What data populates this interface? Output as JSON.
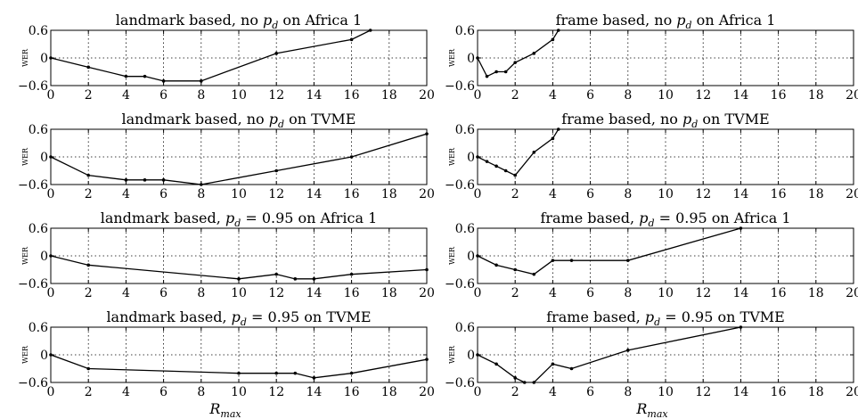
{
  "chart_data": [
    {
      "type": "line",
      "title": "landmark based, no p_d on Africa 1",
      "title_parts": {
        "before": "landmark based, no ",
        "symbol": "p",
        "sub": "d",
        "after": " on Africa 1"
      },
      "ylabel": "WER",
      "xlabel": "",
      "xlim": [
        0,
        20
      ],
      "ylim": [
        -0.6,
        0.6
      ],
      "xticks": [
        "0",
        "2",
        "4",
        "6",
        "8",
        "10",
        "12",
        "14",
        "16",
        "18",
        "20"
      ],
      "yticks": [
        "0.6",
        "0",
        "−0.6"
      ],
      "grid": true,
      "series": [
        {
          "x": [
            0,
            2,
            4,
            5,
            6,
            8,
            12,
            16,
            17
          ],
          "y": [
            0.0,
            -0.2,
            -0.4,
            -0.4,
            -0.5,
            -0.5,
            0.1,
            0.4,
            0.6
          ]
        }
      ]
    },
    {
      "type": "line",
      "title": "frame based, no p_d on Africa 1",
      "title_parts": {
        "before": "frame based, no ",
        "symbol": "p",
        "sub": "d",
        "after": " on Africa 1"
      },
      "ylabel": "WER",
      "xlabel": "",
      "xlim": [
        0,
        20
      ],
      "ylim": [
        -0.6,
        0.6
      ],
      "xticks": [
        "0",
        "2",
        "4",
        "6",
        "8",
        "10",
        "12",
        "14",
        "16",
        "18",
        "20"
      ],
      "yticks": [
        "0.6",
        "0",
        "−0.6"
      ],
      "grid": true,
      "series": [
        {
          "x": [
            0,
            0.5,
            1,
            1.5,
            2,
            3,
            4,
            4.3
          ],
          "y": [
            0.0,
            -0.4,
            -0.3,
            -0.3,
            -0.1,
            0.1,
            0.4,
            0.6
          ]
        }
      ]
    },
    {
      "type": "line",
      "title": "landmark based, no p_d on TVME",
      "title_parts": {
        "before": "landmark based, no ",
        "symbol": "p",
        "sub": "d",
        "after": " on TVME"
      },
      "ylabel": "WER",
      "xlabel": "",
      "xlim": [
        0,
        20
      ],
      "ylim": [
        -0.6,
        0.6
      ],
      "xticks": [
        "0",
        "2",
        "4",
        "6",
        "8",
        "10",
        "12",
        "14",
        "16",
        "18",
        "20"
      ],
      "yticks": [
        "0.6",
        "0",
        "−0.6"
      ],
      "grid": true,
      "series": [
        {
          "x": [
            0,
            2,
            4,
            5,
            6,
            8,
            12,
            16,
            20
          ],
          "y": [
            0.0,
            -0.4,
            -0.5,
            -0.5,
            -0.5,
            -0.6,
            -0.3,
            0.0,
            0.5
          ]
        }
      ]
    },
    {
      "type": "line",
      "title": "frame based, no p_d on TVME",
      "title_parts": {
        "before": "frame based, no ",
        "symbol": "p",
        "sub": "d",
        "after": " on TVME"
      },
      "ylabel": "WER",
      "xlabel": "",
      "xlim": [
        0,
        20
      ],
      "ylim": [
        -0.6,
        0.6
      ],
      "xticks": [
        "0",
        "2",
        "4",
        "6",
        "8",
        "10",
        "12",
        "14",
        "16",
        "18",
        "20"
      ],
      "yticks": [
        "0.6",
        "0",
        "−0.6"
      ],
      "grid": true,
      "series": [
        {
          "x": [
            0,
            0.5,
            1,
            1.5,
            2,
            3,
            4,
            4.3
          ],
          "y": [
            0.0,
            -0.1,
            -0.2,
            -0.3,
            -0.4,
            0.1,
            0.4,
            0.6
          ]
        }
      ]
    },
    {
      "type": "line",
      "title": "landmark based, p_d = 0.95 on Africa 1",
      "title_parts": {
        "before": "landmark based, ",
        "symbol": "p",
        "sub": "d",
        "after": " = 0.95 on Africa 1"
      },
      "ylabel": "WER",
      "xlabel": "",
      "xlim": [
        0,
        20
      ],
      "ylim": [
        -0.6,
        0.6
      ],
      "xticks": [
        "0",
        "2",
        "4",
        "6",
        "8",
        "10",
        "12",
        "14",
        "16",
        "18",
        "20"
      ],
      "yticks": [
        "0.6",
        "0",
        "−0.6"
      ],
      "grid": true,
      "series": [
        {
          "x": [
            0,
            2,
            10,
            12,
            13,
            14,
            16,
            20
          ],
          "y": [
            0.0,
            -0.2,
            -0.5,
            -0.4,
            -0.5,
            -0.5,
            -0.4,
            -0.3
          ]
        }
      ]
    },
    {
      "type": "line",
      "title": "frame based, p_d = 0.95 on Africa 1",
      "title_parts": {
        "before": "frame based, ",
        "symbol": "p",
        "sub": "d",
        "after": " = 0.95 on Africa 1"
      },
      "ylabel": "WER",
      "xlabel": "",
      "xlim": [
        0,
        20
      ],
      "ylim": [
        -0.6,
        0.6
      ],
      "xticks": [
        "0",
        "2",
        "4",
        "6",
        "8",
        "10",
        "12",
        "14",
        "16",
        "18",
        "20"
      ],
      "yticks": [
        "0.6",
        "0",
        "−0.6"
      ],
      "grid": true,
      "series": [
        {
          "x": [
            0,
            1,
            2,
            3,
            4,
            5,
            8,
            14
          ],
          "y": [
            0.0,
            -0.2,
            -0.3,
            -0.4,
            -0.1,
            -0.1,
            -0.1,
            0.6
          ]
        }
      ]
    },
    {
      "type": "line",
      "title": "landmark based, p_d = 0.95 on TVME",
      "title_parts": {
        "before": "landmark based, ",
        "symbol": "p",
        "sub": "d",
        "after": " = 0.95 on TVME"
      },
      "ylabel": "WER",
      "xlabel": "R_max",
      "xlabel_parts": {
        "symbol": "R",
        "sub": "max"
      },
      "xlim": [
        0,
        20
      ],
      "ylim": [
        -0.6,
        0.6
      ],
      "xticks": [
        "0",
        "2",
        "4",
        "6",
        "8",
        "10",
        "12",
        "14",
        "16",
        "18",
        "20"
      ],
      "yticks": [
        "0.6",
        "0",
        "−0.6"
      ],
      "grid": true,
      "series": [
        {
          "x": [
            0,
            2,
            10,
            12,
            13,
            14,
            16,
            20
          ],
          "y": [
            0.0,
            -0.3,
            -0.4,
            -0.4,
            -0.4,
            -0.5,
            -0.4,
            -0.1
          ]
        }
      ]
    },
    {
      "type": "line",
      "title": "frame based, p_d = 0.95 on TVME",
      "title_parts": {
        "before": "frame based, ",
        "symbol": "p",
        "sub": "d",
        "after": " = 0.95 on TVME"
      },
      "ylabel": "WER",
      "xlabel": "R_max",
      "xlabel_parts": {
        "symbol": "R",
        "sub": "max"
      },
      "xlim": [
        0,
        20
      ],
      "ylim": [
        -0.6,
        0.6
      ],
      "xticks": [
        "0",
        "2",
        "4",
        "6",
        "8",
        "10",
        "12",
        "14",
        "16",
        "18",
        "20"
      ],
      "yticks": [
        "0.6",
        "0",
        "−0.6"
      ],
      "grid": true,
      "series": [
        {
          "x": [
            0,
            1,
            2,
            2.5,
            3,
            4,
            5,
            8,
            14
          ],
          "y": [
            0.0,
            -0.2,
            -0.5,
            -0.6,
            -0.6,
            -0.2,
            -0.3,
            0.1,
            0.6
          ]
        }
      ]
    }
  ]
}
